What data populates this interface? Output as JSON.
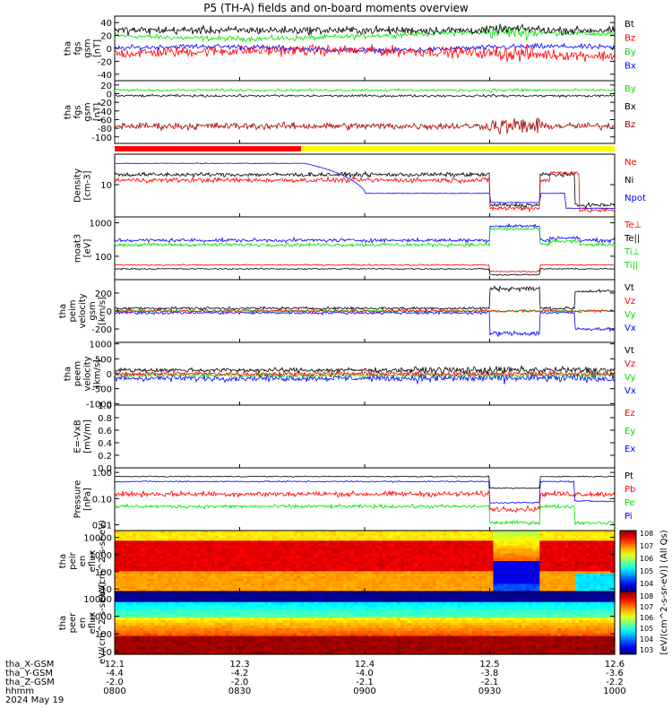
{
  "title": "P5 (TH-A) fields and on-board moments overview",
  "date_label": "2024 May 19",
  "colors": {
    "black": "#000000",
    "red": "#ff0000",
    "green": "#00e000",
    "blue": "#0000ff",
    "darkred": "#a00000",
    "yellow": "#ffff00"
  },
  "footer": {
    "row_labels": [
      "tha_X-GSM",
      "tha_Y-GSM",
      "tha_Z-GSM",
      "hhmm"
    ],
    "columns": [
      {
        "x": "12.1",
        "y": "-4.4",
        "z": "-2.0",
        "t": "0800"
      },
      {
        "x": "12.3",
        "y": "-4.2",
        "z": "-2.0",
        "t": "0830"
      },
      {
        "x": "12.4",
        "y": "-4.0",
        "z": "-2.1",
        "t": "0900"
      },
      {
        "x": "12.5",
        "y": "-3.8",
        "z": "-2.1",
        "t": "0930"
      },
      {
        "x": "12.6",
        "y": "-3.6",
        "z": "-2.2",
        "t": "1000"
      }
    ]
  },
  "colorbar": {
    "label": "[eV/(cm^2-s-sr-eV)] (All Qs)",
    "upper_ticks": [
      "10^8",
      "10^7",
      "10^6",
      "10^5",
      "10^4"
    ],
    "lower_ticks": [
      "10^8",
      "10^7",
      "10^6",
      "10^5",
      "10^4",
      "10^3"
    ]
  },
  "chart_data": [
    {
      "type": "line",
      "ylabel": "tha fgs gsm [nT]",
      "ylim": [
        -50,
        50
      ],
      "yticks": [
        "40",
        "20",
        "0",
        "-20",
        "-40"
      ],
      "series": [
        {
          "name": "Bt",
          "color": "black"
        },
        {
          "name": "Bz",
          "color": "red"
        },
        {
          "name": "By",
          "color": "green"
        },
        {
          "name": "Bx",
          "color": "blue"
        }
      ]
    },
    {
      "type": "line",
      "ylabel": "tha fgs gsm [nT]",
      "ylim": [
        -115,
        30
      ],
      "yticks": [
        "20",
        "0",
        "-20",
        "-40",
        "-60",
        "-80",
        "-100"
      ],
      "series": [
        {
          "name": "By",
          "color": "green"
        },
        {
          "name": "Bx",
          "color": "black"
        },
        {
          "name": "Bz",
          "color": "darkred"
        }
      ]
    },
    {
      "type": "line",
      "ylabel": "Density [cm-3]",
      "scale": "log",
      "ylim": [
        1.5,
        60
      ],
      "yticks": [
        "10"
      ],
      "series": [
        {
          "name": "Ne",
          "color": "red"
        },
        {
          "name": "Ni",
          "color": "black"
        },
        {
          "name": "Npot",
          "color": "blue"
        }
      ]
    },
    {
      "type": "line",
      "ylabel": "moat3 [eV]",
      "scale": "log",
      "ylim": [
        20,
        1500
      ],
      "yticks": [
        "1000",
        "100"
      ],
      "series": [
        {
          "name": "Te⊥",
          "color": "red"
        },
        {
          "name": "Te||",
          "color": "black"
        },
        {
          "name": "Ti⊥",
          "color": "green"
        },
        {
          "name": "Ti||",
          "color": "green"
        }
      ]
    },
    {
      "type": "line",
      "ylabel": "tha peim velocity gsm [km/s]",
      "ylim": [
        -350,
        350
      ],
      "yticks": [
        "200",
        "0",
        "-200"
      ],
      "series": [
        {
          "name": "Vt",
          "color": "black"
        },
        {
          "name": "Vz",
          "color": "red"
        },
        {
          "name": "Vy",
          "color": "green"
        },
        {
          "name": "Vx",
          "color": "blue"
        }
      ]
    },
    {
      "type": "line",
      "ylabel": "tha peem velocity [km/s]",
      "ylim": [
        -1050,
        1050
      ],
      "yticks": [
        "1000",
        "500",
        "0",
        "-500",
        "-1000"
      ],
      "series": [
        {
          "name": "Vt",
          "color": "black"
        },
        {
          "name": "Vz",
          "color": "red"
        },
        {
          "name": "Vy",
          "color": "green"
        },
        {
          "name": "Vx",
          "color": "blue"
        }
      ]
    },
    {
      "type": "line",
      "ylabel": "E=-VxB [mV/m]",
      "ylim": [
        0,
        1
      ],
      "yticks": [
        "1.0",
        "0.8",
        "0.6",
        "0.4",
        "0.2",
        "0.0"
      ],
      "series": [
        {
          "name": "Ez",
          "color": "red"
        },
        {
          "name": "Ey",
          "color": "green"
        },
        {
          "name": "Ex",
          "color": "blue"
        }
      ]
    },
    {
      "type": "line",
      "ylabel": "Pressure [nPa]",
      "scale": "log",
      "ylim": [
        0.006,
        1.5
      ],
      "yticks": [
        "1.00",
        "0.10",
        "0.01"
      ],
      "series": [
        {
          "name": "Pt",
          "color": "black"
        },
        {
          "name": "Pb",
          "color": "red"
        },
        {
          "name": "Pe",
          "color": "green"
        },
        {
          "name": "Pi",
          "color": "blue"
        }
      ]
    },
    {
      "type": "heatmap",
      "ylabel": "tha peir en eflux eV/(cm^2-s-sr-eV)",
      "scale": "log",
      "ylim": [
        7,
        25000
      ],
      "yticks": [
        "10000",
        "1000",
        "100",
        "10"
      ]
    },
    {
      "type": "heatmap",
      "ylabel": "tha peer en eflux eV/(cm^2-s-sr-eV)",
      "scale": "log",
      "ylim": [
        7,
        25000
      ],
      "yticks": [
        "10000",
        "1000",
        "100",
        "10"
      ]
    }
  ]
}
